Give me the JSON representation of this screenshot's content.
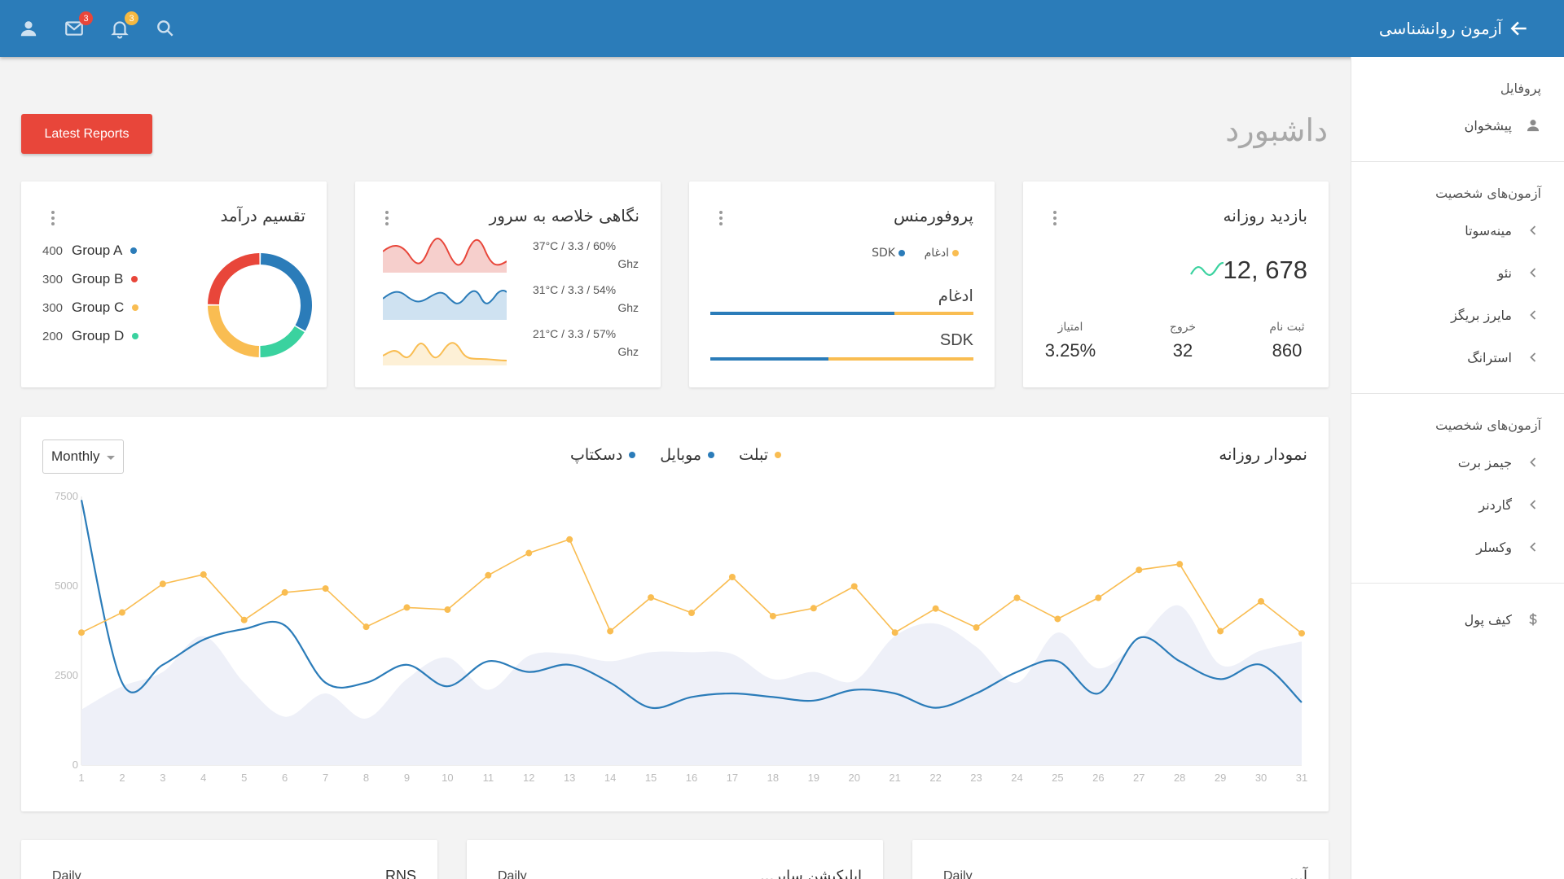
{
  "header": {
    "app_title": "آزمون روانشناسی",
    "mail_badge": "3",
    "notif_badge": "3"
  },
  "sidebar": {
    "profile_heading": "پروفایل",
    "dashboard_item": "پیشخوان",
    "group1_heading": "آزمون‌های شخصیت",
    "group1_items": [
      "مینه‌سوتا",
      "نئو",
      "مایرز بریگز",
      "استرانگ"
    ],
    "group2_heading": "آزمون‌های شخصیت",
    "group2_items": [
      "جیمز برت",
      "گاردنر",
      "وکسلر"
    ],
    "wallet_item": "کیف پول"
  },
  "page": {
    "title": "داشبورد",
    "reports_button": "Latest Reports"
  },
  "income": {
    "title": "تقسیم درآمد",
    "groups": [
      {
        "label": "Group A",
        "value": 400,
        "color": "#2b7cb9"
      },
      {
        "label": "Group B",
        "value": 300,
        "color": "#e8463a"
      },
      {
        "label": "Group C",
        "value": 300,
        "color": "#f9bd52"
      },
      {
        "label": "Group D",
        "value": 200,
        "color": "#3ad29f"
      }
    ]
  },
  "server": {
    "title": "نگاهی خلاصه به سرور",
    "rows": [
      {
        "line1": "37°C / 3.3 / 60%",
        "line2": "Ghz",
        "color": "#e8463a",
        "fill": "#f6cfcc"
      },
      {
        "line1": "31°C / 3.3 / 54%",
        "line2": "Ghz",
        "color": "#2b7cb9",
        "fill": "#cfe2f1"
      },
      {
        "line1": "21°C / 3.3 / 57%",
        "line2": "Ghz",
        "color": "#f9bd52",
        "fill": "#fdf0d6"
      }
    ]
  },
  "performance": {
    "title": "پروفورمنس",
    "legend": [
      {
        "label": "ادغام",
        "color": "#f9bd52"
      },
      {
        "label": "SDK",
        "color": "#2b7cb9"
      }
    ],
    "bars": [
      {
        "label": "ادغام",
        "blue_fraction": 0.7
      },
      {
        "label": "SDK",
        "blue_fraction": 0.45
      }
    ]
  },
  "daily_visit": {
    "title": "بازدید روزانه",
    "value": "678 ,12",
    "stats": [
      {
        "label": "ثبت نام",
        "value": "860"
      },
      {
        "label": "خروج",
        "value": "32"
      },
      {
        "label": "امتیاز",
        "value": "3.25%"
      }
    ]
  },
  "daily_chart": {
    "title": "نمودار روزانه",
    "period": "Monthly"
  },
  "bottom_cards": [
    {
      "title": "آ...",
      "period": "Daily"
    },
    {
      "title": "اپلیکیشن سایر...",
      "period": "Daily"
    },
    {
      "title": "RNS",
      "period": "Daily"
    }
  ],
  "chart_data": {
    "type": "line",
    "x": [
      1,
      2,
      3,
      4,
      5,
      6,
      7,
      8,
      9,
      10,
      11,
      12,
      13,
      14,
      15,
      16,
      17,
      18,
      19,
      20,
      21,
      22,
      23,
      24,
      25,
      26,
      27,
      28,
      29,
      30,
      31
    ],
    "ylim": [
      0,
      7500
    ],
    "yticks": [
      0,
      2500,
      5000,
      7500
    ],
    "legend_position": "top-center",
    "grid": false,
    "series": [
      {
        "name": "تبلت",
        "color": "#f9bd52",
        "values": [
          3700,
          4260,
          5060,
          5320,
          4050,
          4820,
          4930,
          3860,
          4400,
          4340,
          5300,
          5920,
          6300,
          3740,
          4680,
          4250,
          5250,
          4160,
          4380,
          4990,
          3700,
          4370,
          3840,
          4670,
          4080,
          4670,
          5450,
          5610,
          3740,
          4570,
          3680
        ]
      },
      {
        "name": "موبایل",
        "color": "#2b7cb9",
        "values": [
          7400,
          2300,
          2800,
          3500,
          3800,
          3900,
          2300,
          2300,
          2800,
          2200,
          2900,
          2600,
          2800,
          2300,
          1600,
          1900,
          2000,
          1900,
          1800,
          2100,
          2000,
          1600,
          2000,
          2600,
          2900,
          2000,
          3550,
          2900,
          2400,
          2800,
          1750
        ]
      },
      {
        "name": "دسکتاپ",
        "color": "#eef0f8",
        "values": [
          1550,
          2200,
          2600,
          3600,
          2300,
          1350,
          2000,
          1300,
          2400,
          3000,
          2100,
          3050,
          3100,
          2900,
          3150,
          3150,
          3100,
          2400,
          2600,
          2350,
          3600,
          3950,
          3300,
          2300,
          3700,
          2700,
          3500,
          4450,
          2800,
          3200,
          3450
        ]
      }
    ]
  }
}
